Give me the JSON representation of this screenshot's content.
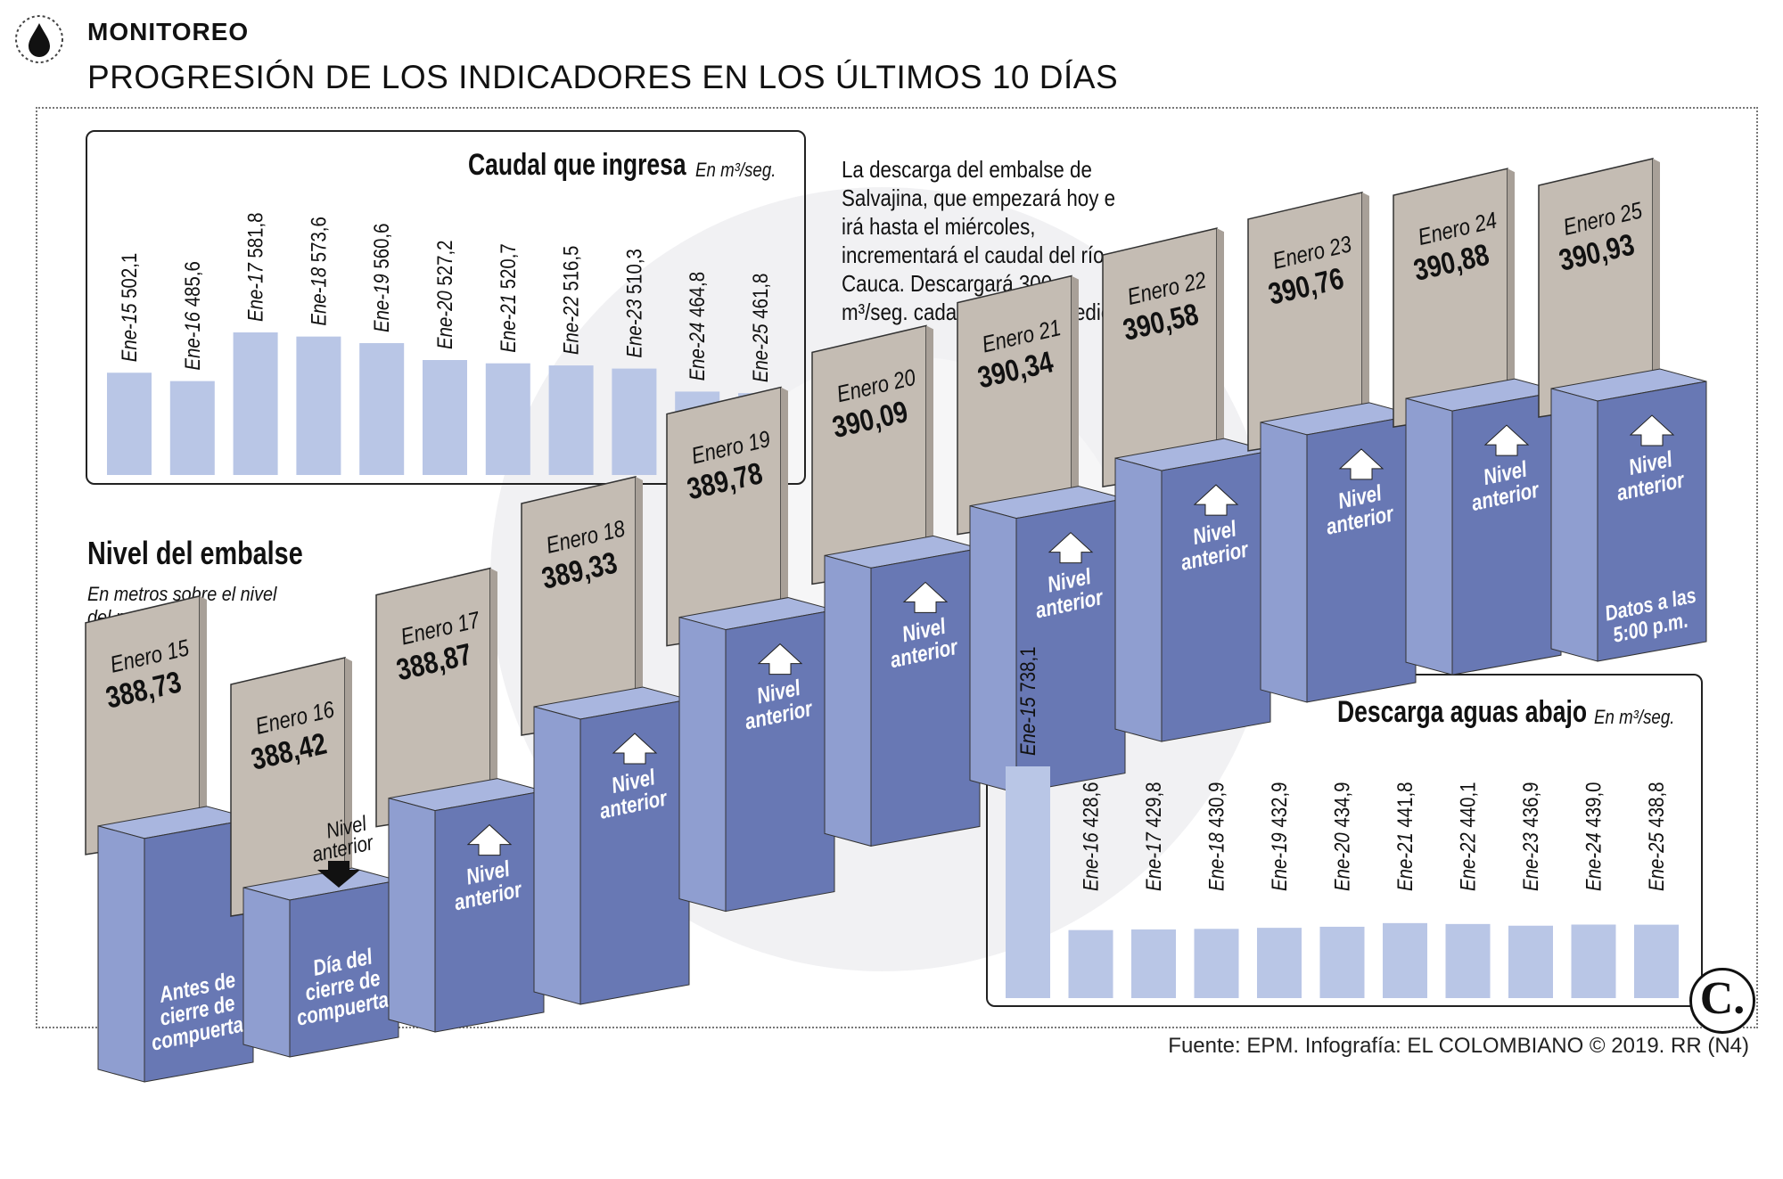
{
  "header": {
    "kicker": "MONITOREO",
    "title": "PROGRESIÓN DE LOS INDICADORES EN LOS ÚLTIMOS 10 DÍAS"
  },
  "note": "La descarga del embalse de Salvajina, que empezará hoy e irá hasta el miércoles, incrementará el caudal del río Cauca. Descargará 300 m³/seg. cada día, en promedio.",
  "source": "Fuente: EPM. Infografía: EL COLOMBIANO © 2019. RR (N4)",
  "logo_text": "C.",
  "colors": {
    "bar_light": "#b9c6e6",
    "block_front": "#6878b4",
    "block_side": "#8f9ed0",
    "block_top": "#a9b6df",
    "tan": "#c4bcb3",
    "tan_side": "#a8a098"
  },
  "chart_data": [
    {
      "type": "bar",
      "title": "Caudal que ingresa",
      "unit": "En m³/seg.",
      "categories": [
        "Ene-15",
        "Ene-16",
        "Ene-17",
        "Ene-18",
        "Ene-19",
        "Ene-20",
        "Ene-21",
        "Ene-22",
        "Ene-23",
        "Ene-24",
        "Ene-25"
      ],
      "value_labels": [
        "502,1",
        "485,6",
        "581,8",
        "573,6",
        "560,6",
        "527,2",
        "520,7",
        "516,5",
        "510,3",
        "464,8",
        "461,8"
      ],
      "values": [
        502.1,
        485.6,
        581.8,
        573.6,
        560.6,
        527.2,
        520.7,
        516.5,
        510.3,
        464.8,
        461.8
      ]
    },
    {
      "type": "bar",
      "title": "Nivel del embalse",
      "subtitle": "En metros sobre el nivel del mar",
      "categories": [
        "Enero 15",
        "Enero 16",
        "Enero 17",
        "Enero 18",
        "Enero 19",
        "Enero 20",
        "Enero 21",
        "Enero 22",
        "Enero 23",
        "Enero 24",
        "Enero 25"
      ],
      "value_labels": [
        "388,73",
        "388,42",
        "388,87",
        "389,33",
        "389,78",
        "390,09",
        "390,34",
        "390,58",
        "390,76",
        "390,88",
        "390,93"
      ],
      "values": [
        388.73,
        388.42,
        388.87,
        389.33,
        389.78,
        390.09,
        390.34,
        390.58,
        390.76,
        390.88,
        390.93
      ],
      "block_notes": [
        "Antes de cierre de compuerta",
        "Día del cierre de compuerta",
        "Nivel anterior",
        "Nivel anterior",
        "Nivel anterior",
        "Nivel anterior",
        "Nivel anterior",
        "Nivel anterior",
        "Nivel anterior",
        "Nivel anterior",
        "Nivel anterior"
      ],
      "down_note": "Nivel anterior",
      "last_note": "Datos a las 5:00 p.m."
    },
    {
      "type": "bar",
      "title": "Descarga aguas abajo",
      "unit": "En m³/seg.",
      "categories": [
        "Ene-15",
        "Ene-16",
        "Ene-17",
        "Ene-18",
        "Ene-19",
        "Ene-20",
        "Ene-21",
        "Ene-22",
        "Ene-23",
        "Ene-24",
        "Ene-25"
      ],
      "value_labels": [
        "738,1",
        "428,6",
        "429,8",
        "430,9",
        "432,9",
        "434,9",
        "441,8",
        "440,1",
        "436,9",
        "439,0",
        "438,8"
      ],
      "values": [
        738.1,
        428.6,
        429.8,
        430.9,
        432.9,
        434.9,
        441.8,
        440.1,
        436.9,
        439.0,
        438.8
      ]
    }
  ]
}
